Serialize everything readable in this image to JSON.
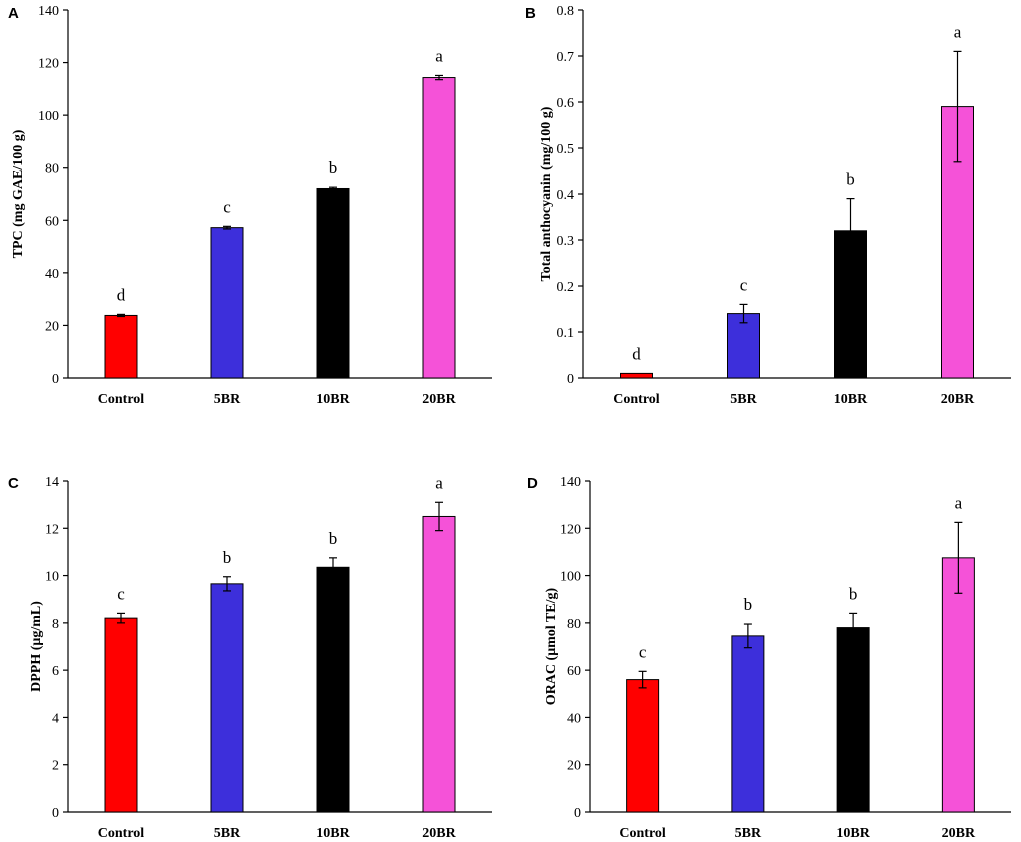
{
  "figure": {
    "description": "Four-panel bar chart figure"
  },
  "colors": {
    "Control": "#ff0000",
    "5BR": "#3d2fdb",
    "10BR": "#000000",
    "20BR": "#f552d8"
  },
  "chart_data": [
    {
      "panel": "A",
      "type": "bar",
      "title": "",
      "xlabel": "",
      "ylabel": "TPC (mg GAE/100 g)",
      "categories": [
        "Control",
        "5BR",
        "10BR",
        "20BR"
      ],
      "values": [
        23.8,
        57.2,
        72.1,
        114.3
      ],
      "errors": [
        0.4,
        0.5,
        0.5,
        0.8
      ],
      "significance": [
        "d",
        "c",
        "b",
        "a"
      ],
      "ylim": [
        0,
        140
      ],
      "yticks": [
        0,
        20,
        40,
        60,
        80,
        100,
        120,
        140
      ],
      "ytick_labels": [
        "0",
        "20",
        "40",
        "60",
        "80",
        "100",
        "120",
        "140"
      ],
      "grid": false
    },
    {
      "panel": "B",
      "type": "bar",
      "title": "",
      "xlabel": "",
      "ylabel": "Total anthocyanin (mg/100 g)",
      "categories": [
        "Control",
        "5BR",
        "10BR",
        "20BR"
      ],
      "values": [
        0.01,
        0.14,
        0.32,
        0.59
      ],
      "errors": [
        0.0,
        0.02,
        0.07,
        0.12
      ],
      "significance": [
        "d",
        "c",
        "b",
        "a"
      ],
      "ylim": [
        0,
        0.8
      ],
      "yticks": [
        0,
        0.1,
        0.2,
        0.3,
        0.4,
        0.5,
        0.6,
        0.7,
        0.8
      ],
      "ytick_labels": [
        "0",
        "0.1",
        "0.2",
        "0.3",
        "0.4",
        "0.5",
        "0.6",
        "0.7",
        "0.8"
      ],
      "grid": false
    },
    {
      "panel": "C",
      "type": "bar",
      "title": "",
      "xlabel": "",
      "ylabel": "DPPH (μg/mL)",
      "categories": [
        "Control",
        "5BR",
        "10BR",
        "20BR"
      ],
      "values": [
        8.2,
        9.65,
        10.35,
        12.5
      ],
      "errors": [
        0.2,
        0.3,
        0.4,
        0.6
      ],
      "significance": [
        "c",
        "b",
        "b",
        "a"
      ],
      "ylim": [
        0,
        14
      ],
      "yticks": [
        0,
        2,
        4,
        6,
        8,
        10,
        12,
        14
      ],
      "ytick_labels": [
        "0",
        "2",
        "4",
        "6",
        "8",
        "10",
        "12",
        "14"
      ],
      "grid": false
    },
    {
      "panel": "D",
      "type": "bar",
      "title": "",
      "xlabel": "",
      "ylabel": "ORAC (μmol TE/g)",
      "categories": [
        "Control",
        "5BR",
        "10BR",
        "20BR"
      ],
      "values": [
        56,
        74.5,
        78,
        107.5
      ],
      "errors": [
        3.5,
        5.0,
        6.0,
        15.0
      ],
      "significance": [
        "c",
        "b",
        "b",
        "a"
      ],
      "ylim": [
        0,
        140
      ],
      "yticks": [
        0,
        20,
        40,
        60,
        80,
        100,
        120,
        140
      ],
      "ytick_labels": [
        "0",
        "20",
        "40",
        "60",
        "80",
        "100",
        "120",
        "140"
      ],
      "grid": false
    }
  ]
}
